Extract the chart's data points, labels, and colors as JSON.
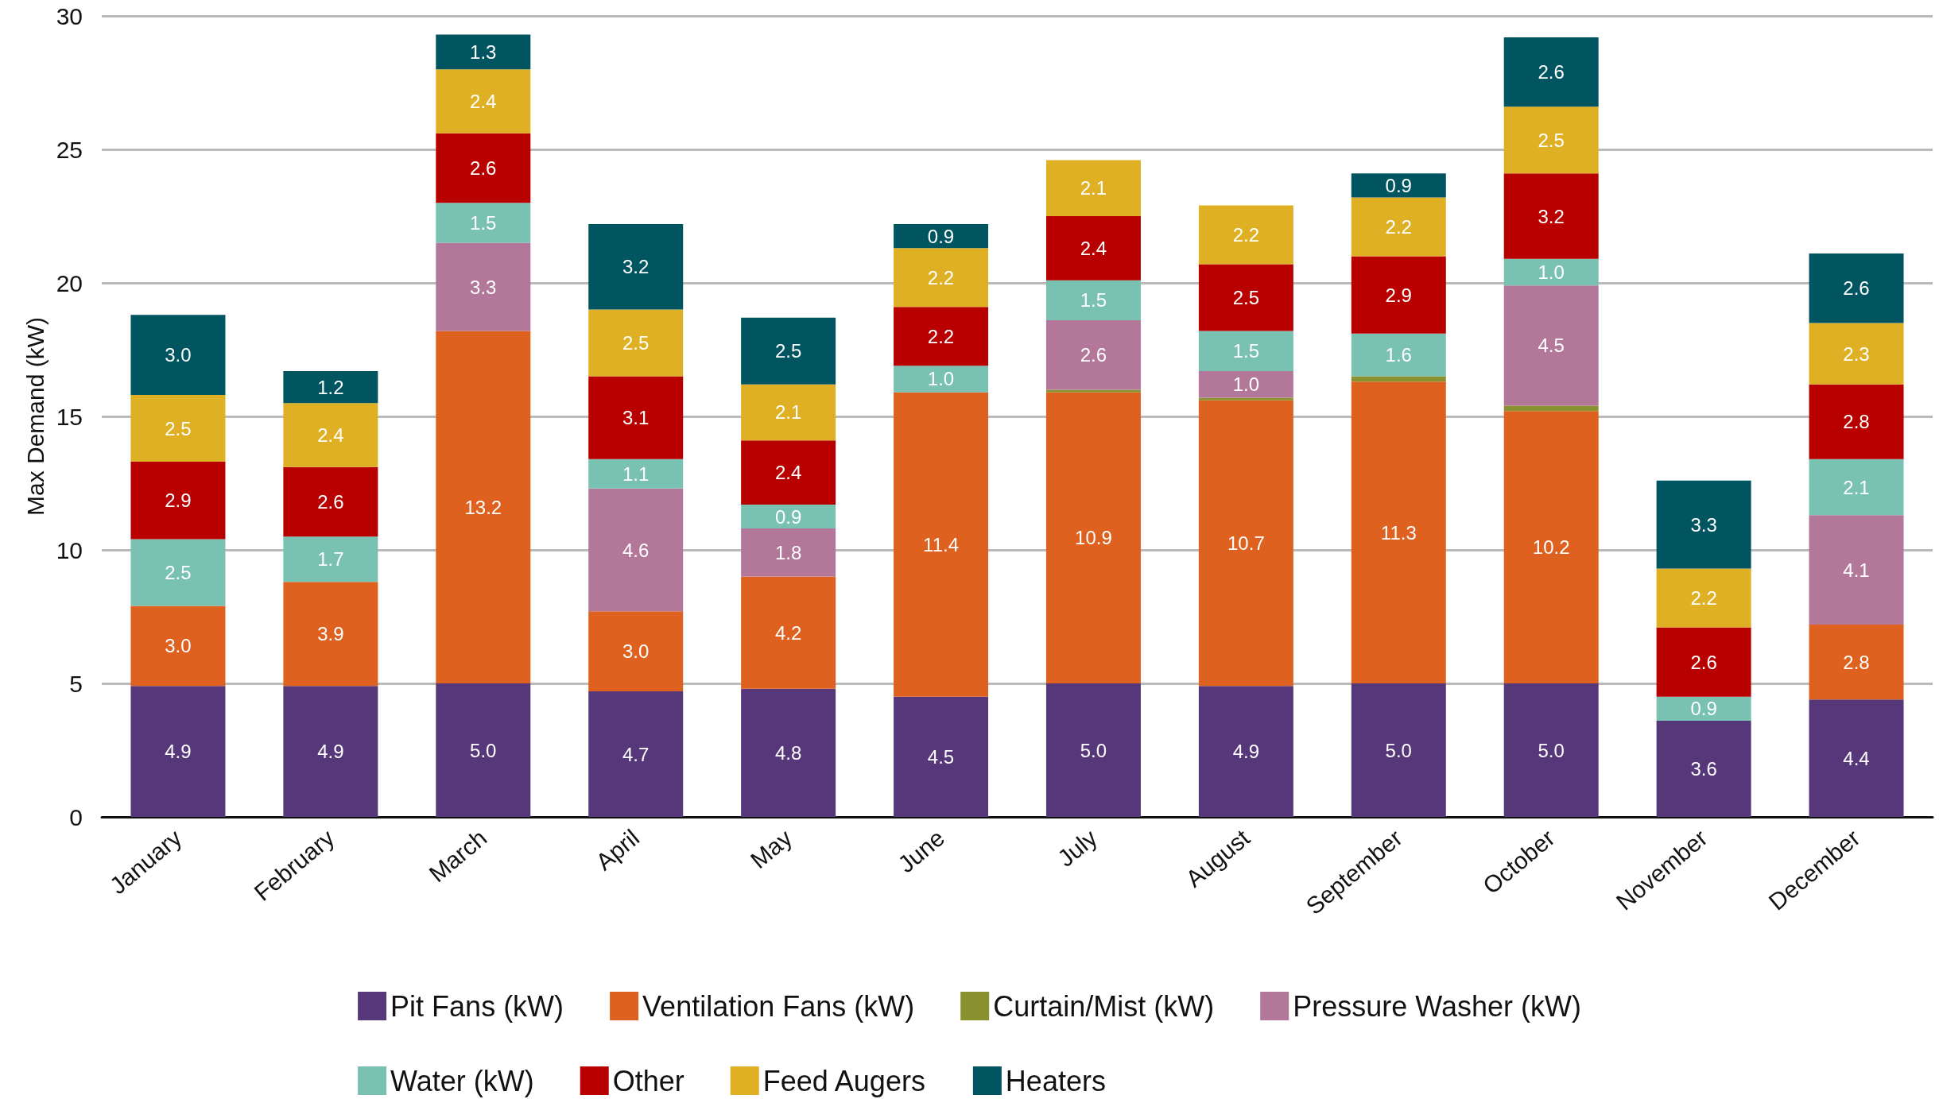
{
  "chart_data": {
    "type": "bar",
    "stacked": true,
    "ylabel": "Max Demand (kW)",
    "categories": [
      "January",
      "February",
      "March",
      "April",
      "May",
      "June",
      "July",
      "August",
      "September",
      "October",
      "November",
      "December"
    ],
    "ylim": [
      0,
      30
    ],
    "yticks": [
      0,
      5,
      10,
      15,
      20,
      25,
      30
    ],
    "grid": "y",
    "legend": "bottom",
    "series": [
      {
        "name": "Pit Fans (kW)",
        "color": "#56387a",
        "values": [
          4.9,
          4.9,
          5.0,
          4.7,
          4.8,
          4.5,
          5.0,
          4.9,
          5.0,
          5.0,
          3.6,
          4.4
        ],
        "value_labels": [
          "4.9",
          "4.9",
          "5.0",
          "4.7",
          "4.8",
          "4.5",
          "5.0",
          "4.9",
          "5.0",
          "5.0",
          "3.6",
          "4.4"
        ]
      },
      {
        "name": "Ventilation Fans (kW)",
        "color": "#df611f",
        "values": [
          3.0,
          3.9,
          13.2,
          3.0,
          4.2,
          11.4,
          10.9,
          10.7,
          11.3,
          10.2,
          null,
          2.8
        ],
        "value_labels": [
          "3.0",
          "3.9",
          "13.2",
          "3.0",
          "4.2",
          "11.4",
          "10.9",
          "10.7",
          "11.3",
          "10.2",
          null,
          "2.8"
        ]
      },
      {
        "name": "Curtain/Mist (kW)",
        "color": "#8a9230",
        "values": [
          null,
          null,
          null,
          null,
          null,
          null,
          0.1,
          0.1,
          0.2,
          0.2,
          null,
          null
        ],
        "value_labels": [
          null,
          null,
          null,
          null,
          null,
          null,
          null,
          null,
          null,
          null,
          null,
          null
        ]
      },
      {
        "name": "Pressure Washer (kW)",
        "color": "#b27799",
        "values": [
          null,
          null,
          3.3,
          4.6,
          1.8,
          null,
          2.6,
          1.0,
          null,
          4.5,
          null,
          4.1
        ],
        "value_labels": [
          null,
          null,
          "3.3",
          "4.6",
          "1.8",
          null,
          "2.6",
          "1.0",
          null,
          "4.5",
          null,
          "4.1"
        ]
      },
      {
        "name": "Water (kW)",
        "color": "#79c1b0",
        "values": [
          2.5,
          1.7,
          1.5,
          1.1,
          0.9,
          1.0,
          1.5,
          1.5,
          1.6,
          1.0,
          0.9,
          2.1
        ],
        "value_labels": [
          "2.5",
          "1.7",
          "1.5",
          "1.1",
          "0.9",
          "1.0",
          "1.5",
          "1.5",
          "1.6",
          "1.0",
          "0.9",
          "2.1"
        ]
      },
      {
        "name": "Other",
        "color": "#b80000",
        "values": [
          2.9,
          2.6,
          2.6,
          3.1,
          2.4,
          2.2,
          2.4,
          2.5,
          2.9,
          3.2,
          2.6,
          2.8
        ],
        "value_labels": [
          "2.9",
          "2.6",
          "2.6",
          "3.1",
          "2.4",
          "2.2",
          "2.4",
          "2.5",
          "2.9",
          "3.2",
          "2.6",
          "2.8"
        ]
      },
      {
        "name": "Feed Augers",
        "color": "#e0b024",
        "values": [
          2.5,
          2.4,
          2.4,
          2.5,
          2.1,
          2.2,
          2.1,
          2.2,
          2.2,
          2.5,
          2.2,
          2.3
        ],
        "value_labels": [
          "2.5",
          "2.4",
          "2.4",
          "2.5",
          "2.1",
          "2.2",
          "2.1",
          "2.2",
          "2.2",
          "2.5",
          "2.2",
          "2.3"
        ]
      },
      {
        "name": "Heaters",
        "color": "#005561",
        "values": [
          3.0,
          1.2,
          1.3,
          3.2,
          2.5,
          0.9,
          null,
          null,
          0.9,
          2.6,
          3.3,
          2.6
        ],
        "value_labels": [
          "3.0",
          "1.2",
          "1.3",
          "3.2",
          "2.5",
          "0.9",
          null,
          null,
          "0.9",
          "2.6",
          "3.3",
          "2.6"
        ]
      }
    ]
  }
}
